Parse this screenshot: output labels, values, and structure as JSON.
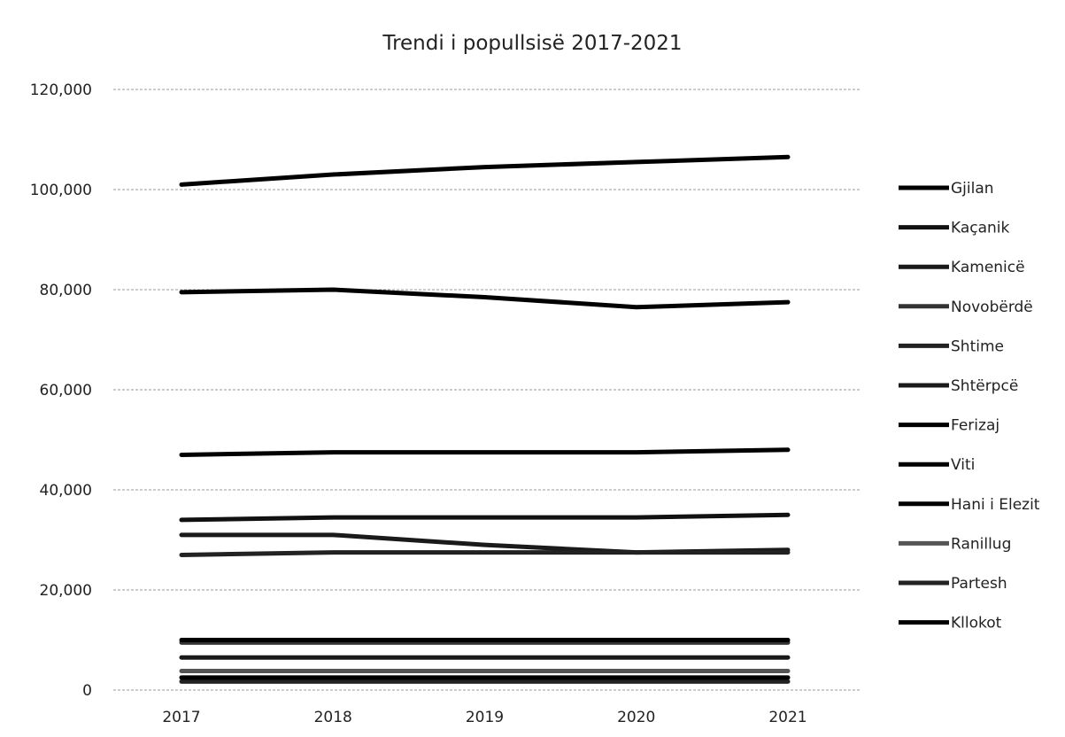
{
  "chart_data": {
    "type": "line",
    "title": "Trendi i popullsisë 2017-2021",
    "xlabel": "",
    "ylabel": "",
    "categories": [
      "2017",
      "2018",
      "2019",
      "2020",
      "2021"
    ],
    "y_ticks": [
      "0",
      "20,000",
      "40,000",
      "60,000",
      "80,000",
      "100,000",
      "120,000"
    ],
    "ylim": [
      0,
      120000
    ],
    "grid": true,
    "legend_position": "right",
    "series": [
      {
        "name": "Gjilan",
        "values": [
          101000,
          103000,
          104500,
          105500,
          106500
        ],
        "color": "#000000"
      },
      {
        "name": "Kaçanik",
        "values": [
          34000,
          34500,
          34500,
          34500,
          35000
        ],
        "color": "#111111"
      },
      {
        "name": "Kamenicë",
        "values": [
          31000,
          31000,
          29000,
          27500,
          28000
        ],
        "color": "#1a1a1a"
      },
      {
        "name": "Novobërdë",
        "values": [
          9500,
          9500,
          9500,
          9500,
          9500
        ],
        "color": "#333333"
      },
      {
        "name": "Shtime",
        "values": [
          27000,
          27500,
          27500,
          27500,
          27500
        ],
        "color": "#222222"
      },
      {
        "name": "Shtërpcë",
        "values": [
          6500,
          6500,
          6500,
          6500,
          6500
        ],
        "color": "#1a1a1a"
      },
      {
        "name": "Ferizaj",
        "values": [
          79500,
          80000,
          78500,
          76500,
          77500
        ],
        "color": "#000000"
      },
      {
        "name": "Viti",
        "values": [
          47000,
          47500,
          47500,
          47500,
          48000
        ],
        "color": "#000000"
      },
      {
        "name": "Hani i Elezit",
        "values": [
          10000,
          10000,
          10000,
          10000,
          10000
        ],
        "color": "#000000"
      },
      {
        "name": "Ranillug",
        "values": [
          3800,
          3800,
          3800,
          3800,
          3800
        ],
        "color": "#555555"
      },
      {
        "name": "Partesh",
        "values": [
          1700,
          1700,
          1700,
          1700,
          1700
        ],
        "color": "#222222"
      },
      {
        "name": "Kllokot",
        "values": [
          2500,
          2500,
          2500,
          2500,
          2500
        ],
        "color": "#000000"
      }
    ]
  }
}
